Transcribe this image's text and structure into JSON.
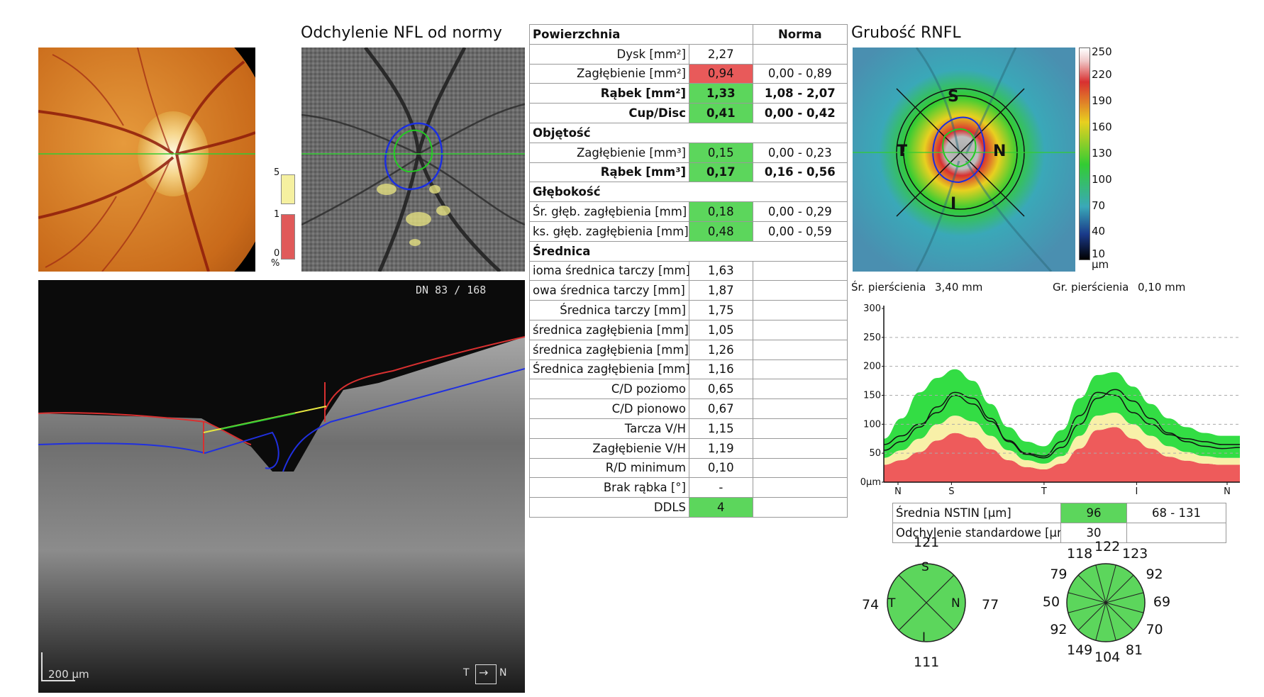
{
  "panels": {
    "deviation_title": "Odchylenie NFL od normy",
    "rnfl_title": "Grubość RNFL"
  },
  "deviation_scale": {
    "ticks": [
      "5",
      "1",
      "0"
    ],
    "unit": "%",
    "colors": {
      "normal": "#f5f0a0",
      "abnormal": "#e05a5a"
    }
  },
  "oct": {
    "frame": "DN 83 / 168",
    "scale_bar": "200 µm",
    "orient_left": "T",
    "orient_right": "N"
  },
  "table": {
    "header": {
      "param": "Powierzchnia",
      "norm": "Norma"
    },
    "rows": [
      {
        "label": "Dysk [mm²]",
        "value": "2,27",
        "norm": "",
        "status": "",
        "bold": false
      },
      {
        "label": "Zagłębienie [mm²]",
        "value": "0,94",
        "norm": "0,00 - 0,89",
        "status": "red",
        "bold": false
      },
      {
        "label": "Rąbek [mm²]",
        "value": "1,33",
        "norm": "1,08 - 2,07",
        "status": "green",
        "bold": true
      },
      {
        "label": "Cup/Disc",
        "value": "0,41",
        "norm": "0,00 - 0,42",
        "status": "green",
        "bold": true
      }
    ],
    "sec_volume": "Objętość",
    "rows_volume": [
      {
        "label": "Zagłębienie [mm³]",
        "value": "0,15",
        "norm": "0,00 - 0,23",
        "status": "green",
        "bold": false
      },
      {
        "label": "Rąbek [mm³]",
        "value": "0,17",
        "norm": "0,16 - 0,56",
        "status": "green",
        "bold": true
      }
    ],
    "sec_depth": "Głębokość",
    "rows_depth": [
      {
        "label": "Śr. głęb. zagłębienia [mm]",
        "value": "0,18",
        "norm": "0,00 - 0,29",
        "status": "green"
      },
      {
        "label": "ks. głęb. zagłębienia [mm]",
        "value": "0,48",
        "norm": "0,00 - 0,59",
        "status": "green"
      }
    ],
    "sec_diameter": "Średnica",
    "rows_diameter": [
      {
        "label": "ioma średnica tarczy [mm]",
        "value": "1,63",
        "status": ""
      },
      {
        "label": "owa średnica tarczy [mm]",
        "value": "1,87",
        "status": ""
      },
      {
        "label": "Średnica tarczy [mm]",
        "value": "1,75",
        "status": ""
      },
      {
        "label": "średnica zagłębienia [mm]",
        "value": "1,05",
        "status": ""
      },
      {
        "label": "średnica zagłębienia [mm]",
        "value": "1,26",
        "status": ""
      },
      {
        "label": "Średnica zagłębienia [mm]",
        "value": "1,16",
        "status": ""
      },
      {
        "label": "C/D poziomo",
        "value": "0,65",
        "status": ""
      },
      {
        "label": "C/D pionowo",
        "value": "0,67",
        "status": ""
      },
      {
        "label": "Tarcza V/H",
        "value": "1,15",
        "status": ""
      },
      {
        "label": "Zagłębienie V/H",
        "value": "1,19",
        "status": ""
      },
      {
        "label": "R/D minimum",
        "value": "0,10",
        "status": ""
      },
      {
        "label": "Brak rąbka [°]",
        "value": "-",
        "status": ""
      },
      {
        "label": "DDLS",
        "value": "4",
        "status": "green"
      }
    ]
  },
  "rnfl_map": {
    "quadrants": {
      "s": "S",
      "t": "T",
      "n": "N",
      "i": "I"
    },
    "colorbar_ticks": [
      "250",
      "220",
      "190",
      "160",
      "130",
      "100",
      "70",
      "40",
      "10"
    ],
    "colorbar_unit": "µm"
  },
  "ring": {
    "diameter_label": "Śr. pierścienia",
    "diameter_value": "3,40 mm",
    "width_label": "Gr. pierścienia",
    "width_value": "0,10 mm"
  },
  "chart_data": {
    "type": "area",
    "ylim": [
      0,
      300
    ],
    "yticks": [
      "300",
      "250",
      "200",
      "150",
      "100",
      "50",
      "0µm"
    ],
    "xticks": [
      "N",
      "S",
      "T",
      "I",
      "N"
    ],
    "x": [
      0,
      5,
      10,
      15,
      20,
      25,
      30,
      35,
      40,
      45,
      50,
      55,
      60,
      65,
      70,
      75,
      80,
      85,
      90,
      95,
      100
    ],
    "series": [
      {
        "values": [
          55,
          70,
          95,
          130,
          155,
          145,
          110,
          70,
          48,
          42,
          60,
          100,
          145,
          160,
          140,
          110,
          85,
          70,
          62,
          58,
          60
        ]
      },
      {
        "values": [
          65,
          80,
          100,
          120,
          150,
          135,
          105,
          72,
          50,
          45,
          70,
          115,
          155,
          150,
          120,
          100,
          82,
          75,
          70,
          65,
          65
        ]
      }
    ],
    "bands": {
      "green_upper": [
        75,
        110,
        155,
        180,
        195,
        175,
        135,
        95,
        70,
        62,
        90,
        145,
        185,
        190,
        165,
        135,
        110,
        95,
        85,
        80,
        80
      ],
      "green_lower": [
        42,
        55,
        75,
        100,
        115,
        105,
        80,
        55,
        38,
        32,
        45,
        80,
        115,
        120,
        100,
        80,
        62,
        52,
        45,
        42,
        42
      ],
      "yellow_lower": [
        35,
        45,
        62,
        85,
        98,
        90,
        68,
        46,
        32,
        27,
        38,
        68,
        100,
        105,
        85,
        68,
        52,
        44,
        38,
        35,
        35
      ],
      "red_upper": [
        30,
        38,
        52,
        72,
        85,
        77,
        57,
        38,
        26,
        22,
        32,
        58,
        90,
        95,
        75,
        58,
        44,
        37,
        32,
        30,
        30
      ]
    },
    "colors": {
      "green": "#33dd44",
      "yellow": "#f8f0a8",
      "red": "#ee5b5b",
      "line": "#111111"
    }
  },
  "nstin": {
    "mean_label": "Średnia NSTIN [µm]",
    "mean_value": "96",
    "mean_norm": "68 - 131",
    "sd_label": "Odchylenie standardowe [µr",
    "sd_value": "30"
  },
  "quadrant_chart": {
    "top": "121",
    "left": "74",
    "right": "77",
    "bottom": "111",
    "s": "S",
    "t": "T",
    "n": "N",
    "i": "I"
  },
  "clock_chart": {
    "values": [
      "122",
      "123",
      "92",
      "69",
      "70",
      "81",
      "104",
      "149",
      "92",
      "50",
      "79",
      "118"
    ]
  }
}
